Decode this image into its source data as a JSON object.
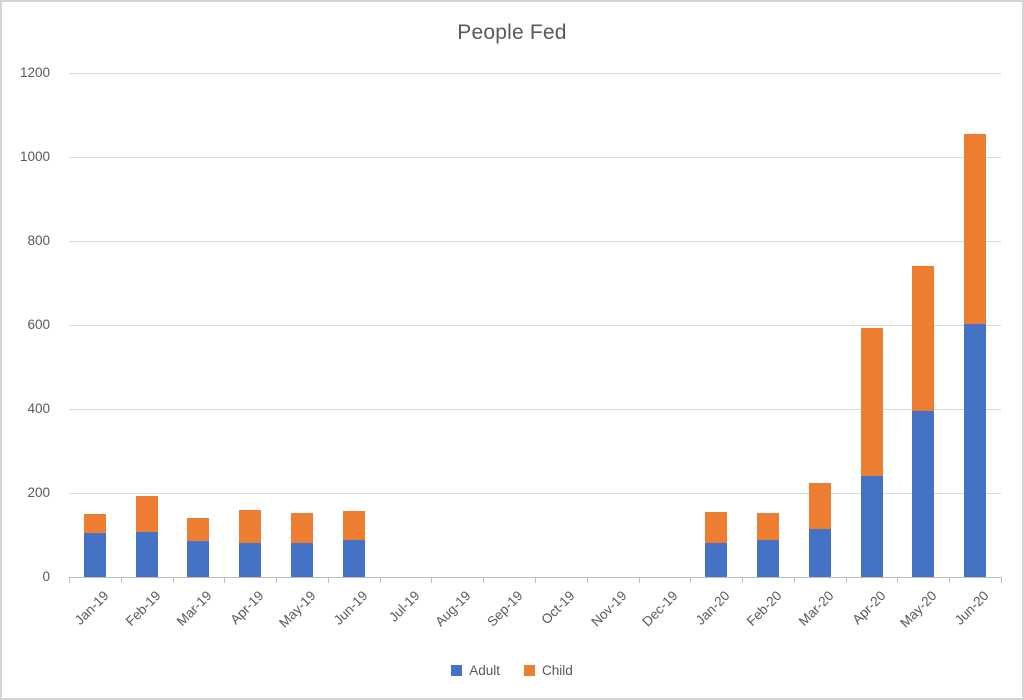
{
  "window": {
    "background": "#ffffff",
    "border_color": "#d5d5d5"
  },
  "chart_data": {
    "type": "bar",
    "stacked": true,
    "title": "People Fed",
    "categories": [
      "Jan-19",
      "Feb-19",
      "Mar-19",
      "Apr-19",
      "May-19",
      "Jun-19",
      "Jul-19",
      "Aug-19",
      "Sep-19",
      "Oct-19",
      "Nov-19",
      "Dec-19",
      "Jan-20",
      "Feb-20",
      "Mar-20",
      "Apr-20",
      "May-20",
      "Jun-20"
    ],
    "series": [
      {
        "name": "Adult",
        "color": "#4472C4",
        "values": [
          105,
          107,
          85,
          81,
          80,
          88,
          0,
          0,
          0,
          0,
          0,
          0,
          82,
          87,
          115,
          240,
          395,
          602
        ]
      },
      {
        "name": "Child",
        "color": "#ED7D31",
        "values": [
          46,
          86,
          55,
          79,
          73,
          70,
          0,
          0,
          0,
          0,
          0,
          0,
          72,
          65,
          110,
          352,
          345,
          452
        ]
      }
    ],
    "xlabel": "",
    "ylabel": "",
    "ylim": [
      0,
      1200
    ],
    "yticks": [
      0,
      200,
      400,
      600,
      800,
      1000,
      1200
    ],
    "grid": true,
    "legend_position": "bottom",
    "colors": {
      "axis_text": "#595959",
      "title_text": "#595959",
      "gridline": "#d9d9d9",
      "axis_line": "#bfbfbf"
    }
  },
  "legend": {
    "items": [
      {
        "label": "Adult",
        "color": "#4472C4"
      },
      {
        "label": "Child",
        "color": "#ED7D31"
      }
    ]
  }
}
